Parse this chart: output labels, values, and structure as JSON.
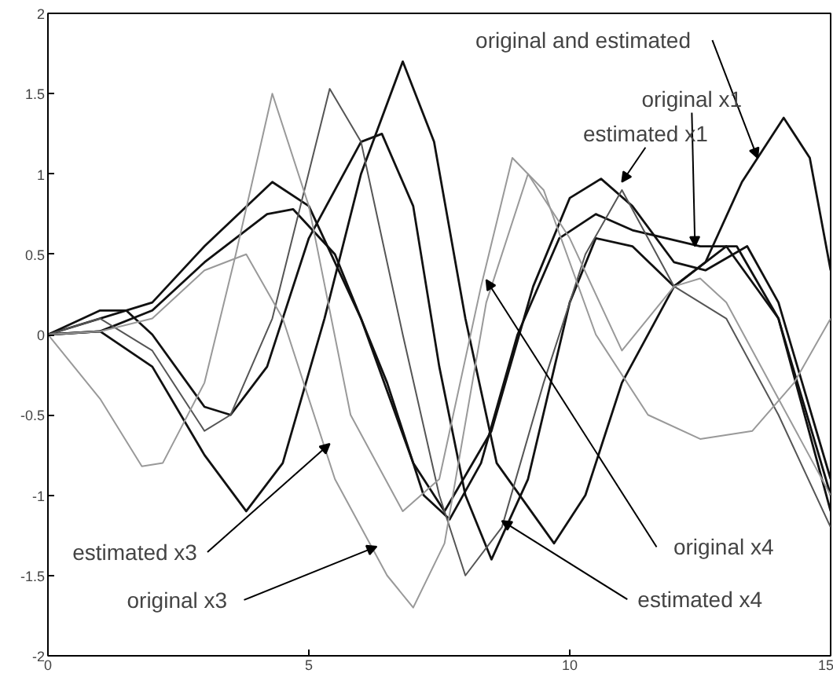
{
  "chart_data": {
    "type": "line",
    "xlim": [
      0,
      15
    ],
    "ylim": [
      -2,
      2
    ],
    "xticks": [
      0,
      5,
      10,
      15
    ],
    "yticks": [
      -2,
      -1.5,
      -1,
      -0.5,
      0,
      0.5,
      1,
      1.5,
      2
    ],
    "grid": false,
    "marker": "none",
    "line_style": "solid",
    "series": [
      {
        "color": "#111111",
        "x": [
          0,
          1,
          2,
          3,
          3.8,
          4.5,
          5.3,
          6,
          6.8,
          7.4,
          8,
          8.6,
          9.7,
          10.3,
          11,
          12,
          12.6,
          13.3,
          14.1,
          14.6,
          15
        ],
        "values": [
          0,
          0.02,
          -0.2,
          -0.75,
          -1.1,
          -0.8,
          0.1,
          1.0,
          1.7,
          1.2,
          0.1,
          -0.8,
          -1.3,
          -1.0,
          -0.3,
          0.3,
          0.45,
          0.95,
          1.35,
          1.1,
          0.4
        ]
      },
      {
        "color": "#111111",
        "x": [
          0,
          1,
          2,
          3,
          4.2,
          4.7,
          5.5,
          6.5,
          7.2,
          7.7,
          8.3,
          9,
          9.8,
          10.5,
          11.2,
          12.5,
          13.2,
          14,
          15
        ],
        "values": [
          0,
          0.02,
          0.15,
          0.45,
          0.75,
          0.78,
          0.5,
          -0.3,
          -1.0,
          -1.15,
          -0.8,
          0,
          0.6,
          0.75,
          0.65,
          0.55,
          0.55,
          0.1,
          -1.0
        ]
      },
      {
        "color": "#111111",
        "x": [
          0,
          2,
          3,
          4.3,
          5,
          6,
          7,
          7.6,
          8.5,
          9.3,
          10,
          10.6,
          11.2,
          12,
          12.6,
          13.4,
          14,
          15
        ],
        "values": [
          0,
          0.2,
          0.55,
          0.95,
          0.8,
          0.1,
          -0.8,
          -1.1,
          -0.6,
          0.3,
          0.85,
          0.97,
          0.8,
          0.45,
          0.4,
          0.55,
          0.2,
          -0.9
        ]
      },
      {
        "color": "#111111",
        "x": [
          0,
          1,
          1.5,
          2,
          3,
          3.5,
          4.2,
          5,
          6,
          6.4,
          7,
          7.5,
          8,
          8.5,
          9.2,
          10,
          10.5,
          11.2,
          12,
          13,
          14,
          15
        ],
        "values": [
          0,
          0.15,
          0.15,
          0,
          -0.45,
          -0.5,
          -0.2,
          0.6,
          1.2,
          1.25,
          0.8,
          -0.2,
          -1.0,
          -1.4,
          -0.9,
          0.2,
          0.6,
          0.55,
          0.3,
          0.55,
          0.1,
          -1.1
        ]
      },
      {
        "color": "#555555",
        "x": [
          0,
          1,
          2,
          3,
          3.5,
          4.3,
          5.4,
          6,
          6.8,
          7.5,
          8,
          8.7,
          9.5,
          10.3,
          11,
          12,
          13,
          14,
          15
        ],
        "values": [
          0,
          0.1,
          -0.1,
          -0.6,
          -0.5,
          0.1,
          1.53,
          1.2,
          0,
          -1.0,
          -1.5,
          -1.2,
          -0.3,
          0.5,
          0.9,
          0.3,
          0.1,
          -0.5,
          -1.2
        ]
      },
      {
        "color": "#999999",
        "x": [
          0,
          1,
          1.8,
          2.2,
          3,
          3.6,
          4.3,
          5,
          5.8,
          6.8,
          7.5,
          8.3,
          8.9,
          9.5,
          10.5,
          11.5,
          12.5,
          13.5,
          14.3,
          15
        ],
        "values": [
          0,
          -0.4,
          -0.82,
          -0.8,
          -0.3,
          0.5,
          1.5,
          0.8,
          -0.5,
          -1.1,
          -0.9,
          0.3,
          1.1,
          0.9,
          0,
          -0.5,
          -0.65,
          -0.6,
          -0.3,
          0.1
        ]
      },
      {
        "color": "#999999",
        "x": [
          0,
          1,
          2,
          3,
          3.8,
          4.5,
          5.5,
          6.5,
          7,
          7.6,
          8.4,
          9.2,
          10,
          11,
          12,
          12.5,
          13,
          14,
          15
        ],
        "values": [
          0,
          0.02,
          0.1,
          0.4,
          0.5,
          0.1,
          -0.9,
          -1.5,
          -1.7,
          -1.3,
          0.2,
          1.0,
          0.6,
          -0.1,
          0.3,
          0.35,
          0.2,
          -0.4,
          -1.0
        ]
      }
    ],
    "annotations": [
      {
        "text": "original and estimated",
        "x": 13.6,
        "y": 1.1
      },
      {
        "text": "original x1",
        "x": 12.4,
        "y": 0.55
      },
      {
        "text": "estimated x1",
        "x": 11.0,
        "y": 0.95
      },
      {
        "text": "estimated x3",
        "x": 5.4,
        "y": -0.68
      },
      {
        "text": "original x3",
        "x": 6.3,
        "y": -1.32
      },
      {
        "text": "original x4",
        "x": 8.4,
        "y": 0.34
      },
      {
        "text": "estimated x4",
        "x": 8.7,
        "y": -1.16
      }
    ]
  }
}
